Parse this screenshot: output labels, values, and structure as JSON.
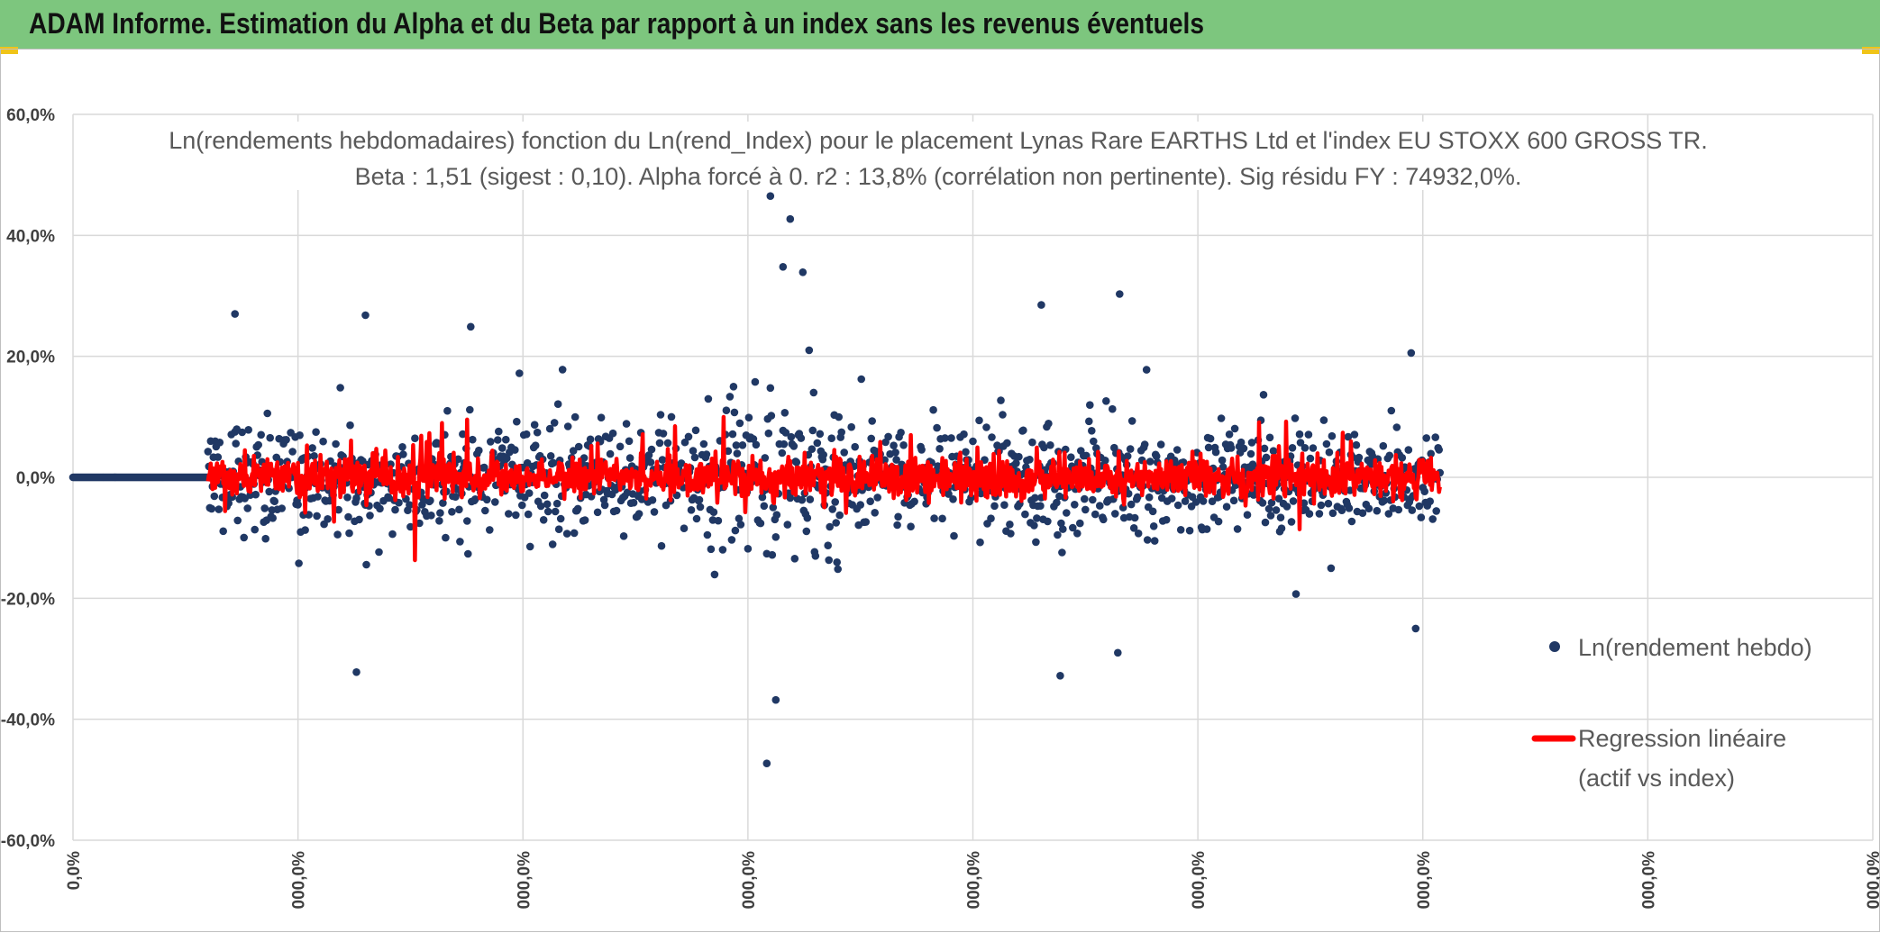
{
  "header": {
    "title": "ADAM Informe. Estimation du Alpha et du Beta par rapport à un index sans les revenus éventuels"
  },
  "colors": {
    "banner": "#7dc67e",
    "scatter": "#203864",
    "regression": "#ff0000",
    "grid": "#d9d9d9",
    "corner_accent": "#f0c419"
  },
  "chart_data": {
    "type": "scatter",
    "title_line1": "Ln(rendements hebdomadaires) fonction du Ln(rend_Index) pour le placement Lynas Rare EARTHS Ltd et l'index EU STOXX 600 GROSS TR.",
    "title_line2": "Beta : 1,51 (sigest : 0,10). Alpha forcé à 0. r2 : 13,8% (corrélation non pertinente). Sig résidu FY : 74932,0%.",
    "ylim": [
      -60,
      60
    ],
    "y_ticks": [
      "60,0%",
      "40,0%",
      "20,0%",
      "0,0%",
      "-20,0%",
      "-40,0%",
      "-60,0%"
    ],
    "x_tick_labels": [
      "0,0%",
      "000,0%",
      "000,0%",
      "000,0%",
      "000,0%",
      "000,0%",
      "000,0%",
      "000,0%",
      "000,0%"
    ],
    "grid": true,
    "legend_position": "right",
    "series": [
      {
        "name": "Ln(rendement hebdo)",
        "kind": "scatter"
      },
      {
        "name": "Regression linéaire (actif vs index)",
        "kind": "line"
      }
    ],
    "n_points": 1520,
    "flat_zero_points": 150,
    "notable_points": [
      {
        "x": 775,
        "y": 46.5
      },
      {
        "x": 797,
        "y": 42.7
      },
      {
        "x": 789,
        "y": 34.8
      },
      {
        "x": 811,
        "y": 33.9
      },
      {
        "x": 771,
        "y": -47.3
      },
      {
        "x": 781,
        "y": -36.8
      },
      {
        "x": 315,
        "y": -32.2
      },
      {
        "x": 1076,
        "y": 28.5
      },
      {
        "x": 1163,
        "y": 30.3
      },
      {
        "x": 1161,
        "y": -29.0
      },
      {
        "x": 1097,
        "y": -32.8
      },
      {
        "x": 1492,
        "y": -25.0
      },
      {
        "x": 325,
        "y": 26.8
      },
      {
        "x": 180,
        "y": 27.0
      },
      {
        "x": 442,
        "y": 24.9
      }
    ],
    "legend": {
      "scatter_label": "Ln(rendement hebdo)",
      "line_label_1": "Regression linéaire",
      "line_label_2": "(actif vs index)"
    }
  }
}
